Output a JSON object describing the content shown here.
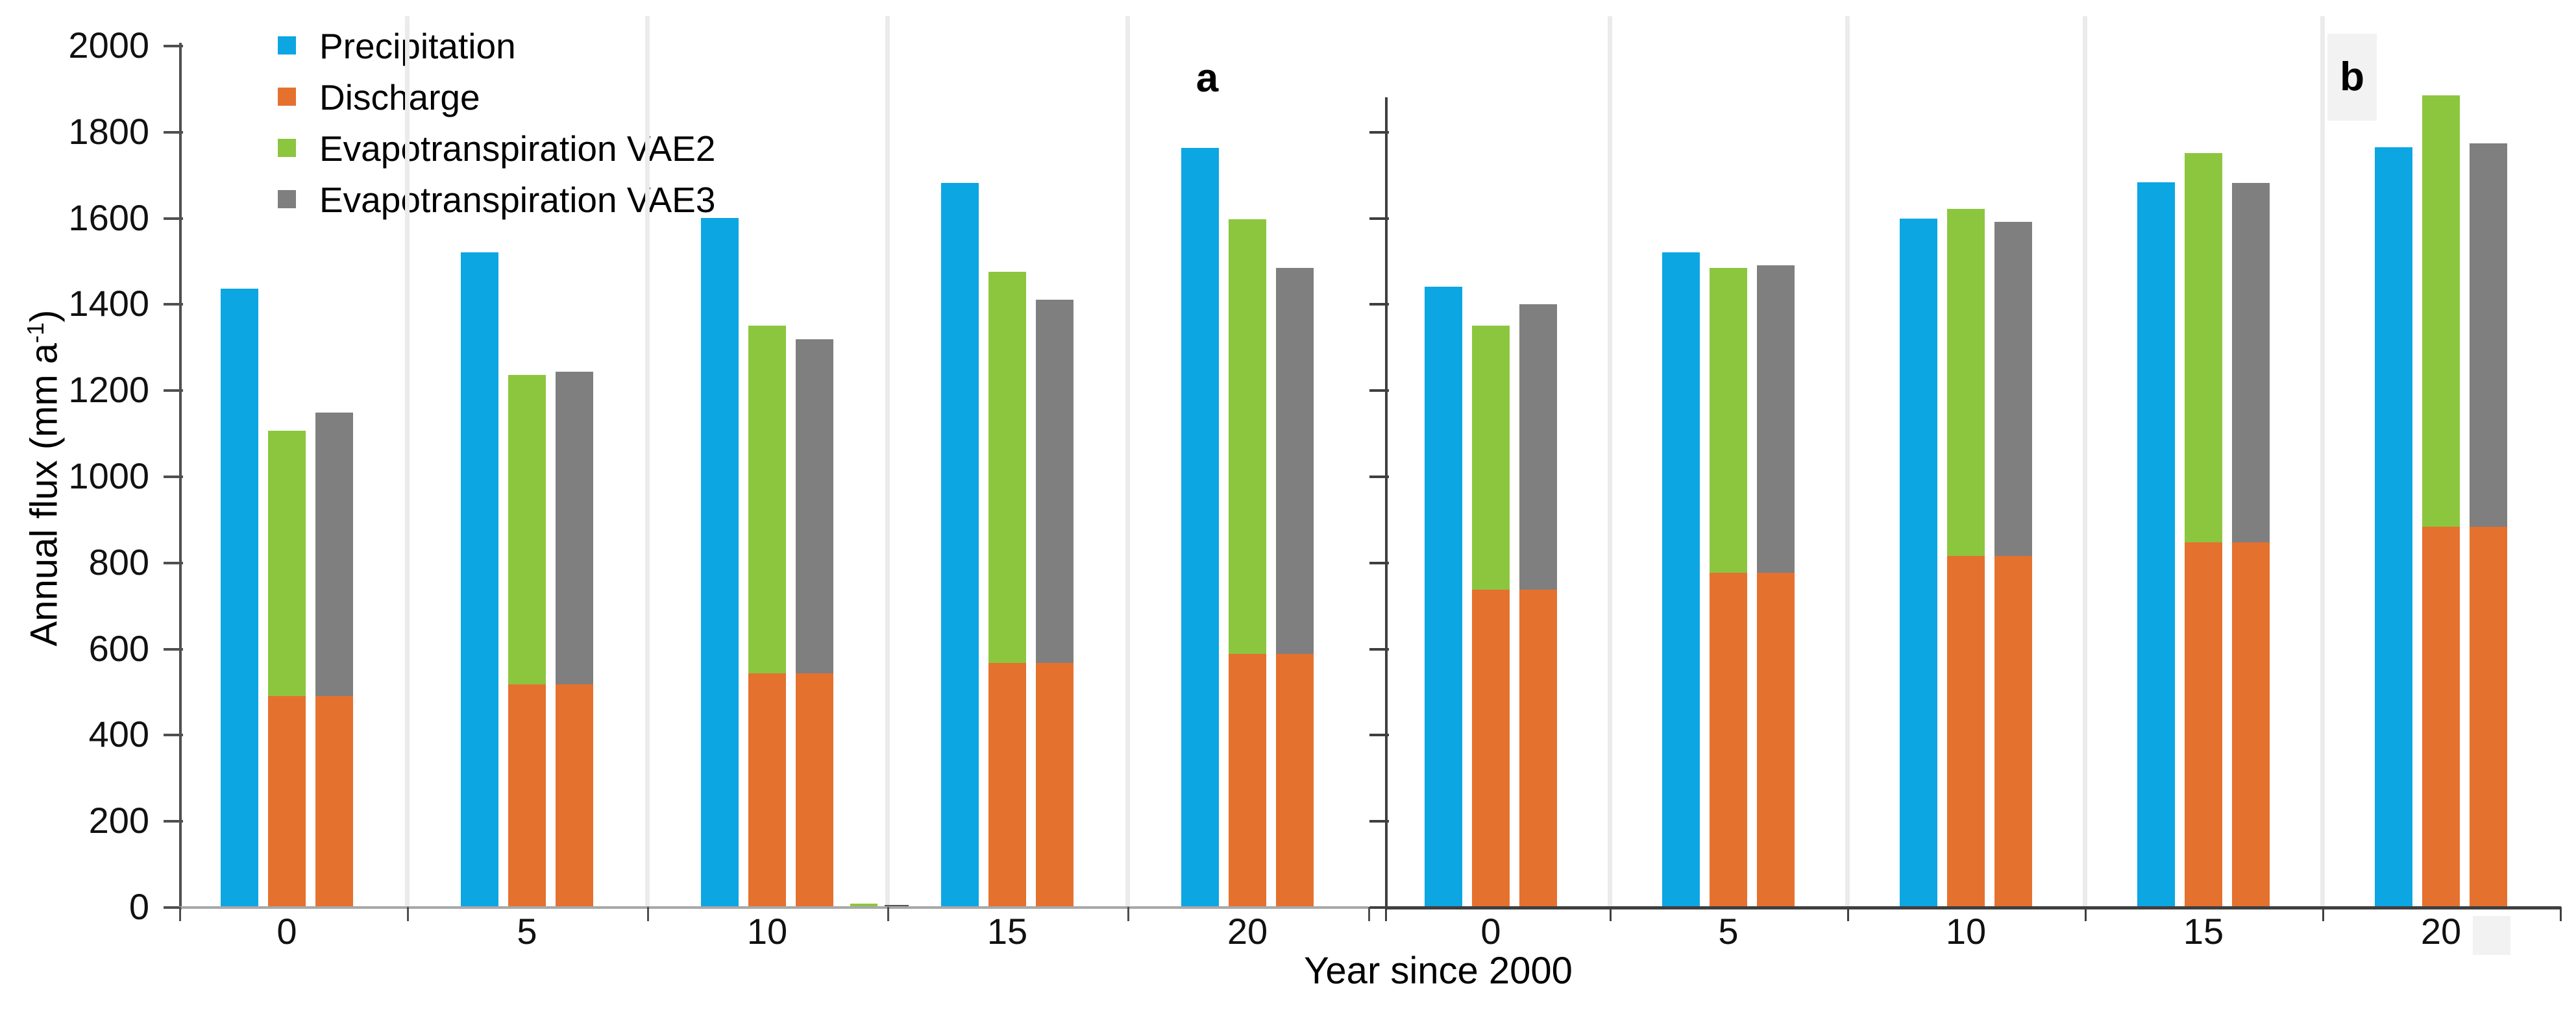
{
  "figure": {
    "background": "#FFFFFF"
  },
  "colors": {
    "precipitation": "#0CA6E3",
    "discharge": "#E5712F",
    "evapotranspiration_vae2": "#8CC63E",
    "evapotranspiration_vae3": "#7F7F7F",
    "panel_a_axis": "#4F4F4F",
    "panel_a_baseline": "#A8A8A8",
    "panel_b_axis": "#3F3F3F",
    "section_divider": "#EBEBEB",
    "label_box": "#F2F2F2"
  },
  "legend": {
    "items": [
      {
        "label": "Precipitation",
        "color_key": "precipitation",
        "swatch": "blue-square-icon"
      },
      {
        "label": "Discharge",
        "color_key": "discharge",
        "swatch": "orange-square-icon"
      },
      {
        "label": "Evapotranspiration VAE2",
        "color_key": "evapotranspiration_vae2",
        "swatch": "green-square-icon"
      },
      {
        "label": "Evapotranspiration VAE3",
        "color_key": "evapotranspiration_vae3",
        "swatch": "gray-square-icon"
      }
    ]
  },
  "y_axis": {
    "title_prefix": "Annual flux (mm a",
    "title_superscript": "-1",
    "title_suffix": ")",
    "tick_labels": [
      "0",
      "200",
      "400",
      "600",
      "800",
      "1000",
      "1200",
      "1400",
      "1600",
      "1800",
      "2000"
    ]
  },
  "x_axis": {
    "title": "Year since 2000",
    "categories": [
      "0",
      "5",
      "10",
      "15",
      "20"
    ]
  },
  "chart_data": [
    {
      "type": "bar",
      "panel_label": "a",
      "x": [
        0,
        5,
        10,
        15,
        20
      ],
      "x_categories": [
        "0",
        "5",
        "10",
        "15",
        "20"
      ],
      "xlabel": "Year since 2000",
      "ylabel": "Annual flux (mm a-1)",
      "ylim": [
        0,
        2000
      ],
      "y_tick_step": 200,
      "y_tick_labels_visible": true,
      "grid": false,
      "legend_position": "top-left",
      "grouping": "Precipitation standalone bar; Evapotranspiration VAE2 and VAE3 each stacked on top of Discharge",
      "series": [
        {
          "name": "Precipitation",
          "color_key": "precipitation",
          "values": [
            1435,
            1520,
            1600,
            1680,
            1762
          ]
        },
        {
          "name": "Discharge",
          "color_key": "discharge",
          "values": [
            490,
            517,
            542,
            567,
            588
          ]
        },
        {
          "name": "Evapotranspiration VAE2",
          "color_key": "evapotranspiration_vae2",
          "stacked_on": "Discharge",
          "values": [
            615,
            718,
            808,
            908,
            1009
          ],
          "stack_top": [
            1105,
            1235,
            1350,
            1475,
            1597
          ]
        },
        {
          "name": "Evapotranspiration VAE3",
          "color_key": "evapotranspiration_vae3",
          "stacked_on": "Discharge",
          "values": [
            658,
            725,
            776,
            842,
            895
          ],
          "stack_top": [
            1148,
            1242,
            1318,
            1409,
            1483
          ]
        }
      ],
      "artifact_bars": {
        "description": "tiny near-zero slivers at right edge of year-10 section",
        "items": [
          {
            "series": "Evapotranspiration VAE2",
            "value": 8
          },
          {
            "series": "Evapotranspiration VAE3",
            "value": 5
          }
        ]
      }
    },
    {
      "type": "bar",
      "panel_label": "b",
      "x": [
        0,
        5,
        10,
        15,
        20
      ],
      "x_categories": [
        "0",
        "5",
        "10",
        "15",
        "20"
      ],
      "xlabel": "Year since 2000",
      "ylabel": "Annual flux (mm a-1)",
      "ylim": [
        0,
        1800
      ],
      "y_tick_step": 200,
      "y_tick_labels_visible": false,
      "grid": false,
      "grouping": "Precipitation standalone bar; Evapotranspiration VAE2 and VAE3 each stacked on top of Discharge",
      "series": [
        {
          "name": "Precipitation",
          "color_key": "precipitation",
          "values": [
            1440,
            1520,
            1598,
            1682,
            1763
          ]
        },
        {
          "name": "Discharge",
          "color_key": "discharge",
          "values": [
            737,
            776,
            815,
            847,
            882
          ]
        },
        {
          "name": "Evapotranspiration VAE2",
          "color_key": "evapotranspiration_vae2",
          "stacked_on": "Discharge",
          "values": [
            613,
            707,
            805,
            903,
            1002
          ],
          "stack_top": [
            1350,
            1483,
            1620,
            1750,
            1884
          ]
        },
        {
          "name": "Evapotranspiration VAE3",
          "color_key": "evapotranspiration_vae3",
          "stacked_on": "Discharge",
          "values": [
            662,
            714,
            775,
            833,
            891
          ],
          "stack_top": [
            1399,
            1490,
            1590,
            1680,
            1773
          ]
        }
      ]
    }
  ]
}
